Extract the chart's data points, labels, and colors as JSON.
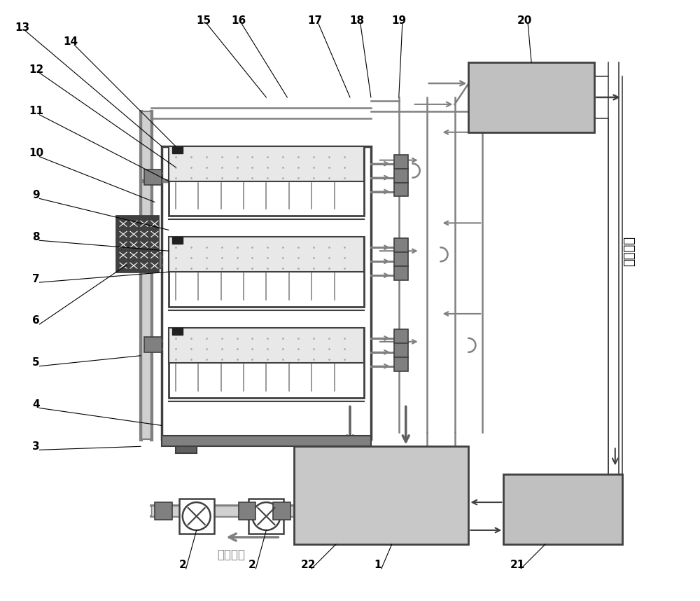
{
  "bg_color": "#ffffff",
  "line_color": "#808080",
  "dark_line": "#404040",
  "label_color": "#000000",
  "arrow_color": "#808080",
  "box_fill": "#c0c0c0",
  "box_fill_light": "#d8d8d8",
  "numbers": [
    "1",
    "2",
    "3",
    "4",
    "5",
    "6",
    "7",
    "8",
    "9",
    "10",
    "11",
    "12",
    "13",
    "14",
    "15",
    "16",
    "17",
    "18",
    "19",
    "20",
    "21",
    "22"
  ],
  "chinese_label1": "液体流向",
  "chinese_label2": "热量交换",
  "figsize": [
    10.0,
    8.58
  ],
  "dpi": 100
}
